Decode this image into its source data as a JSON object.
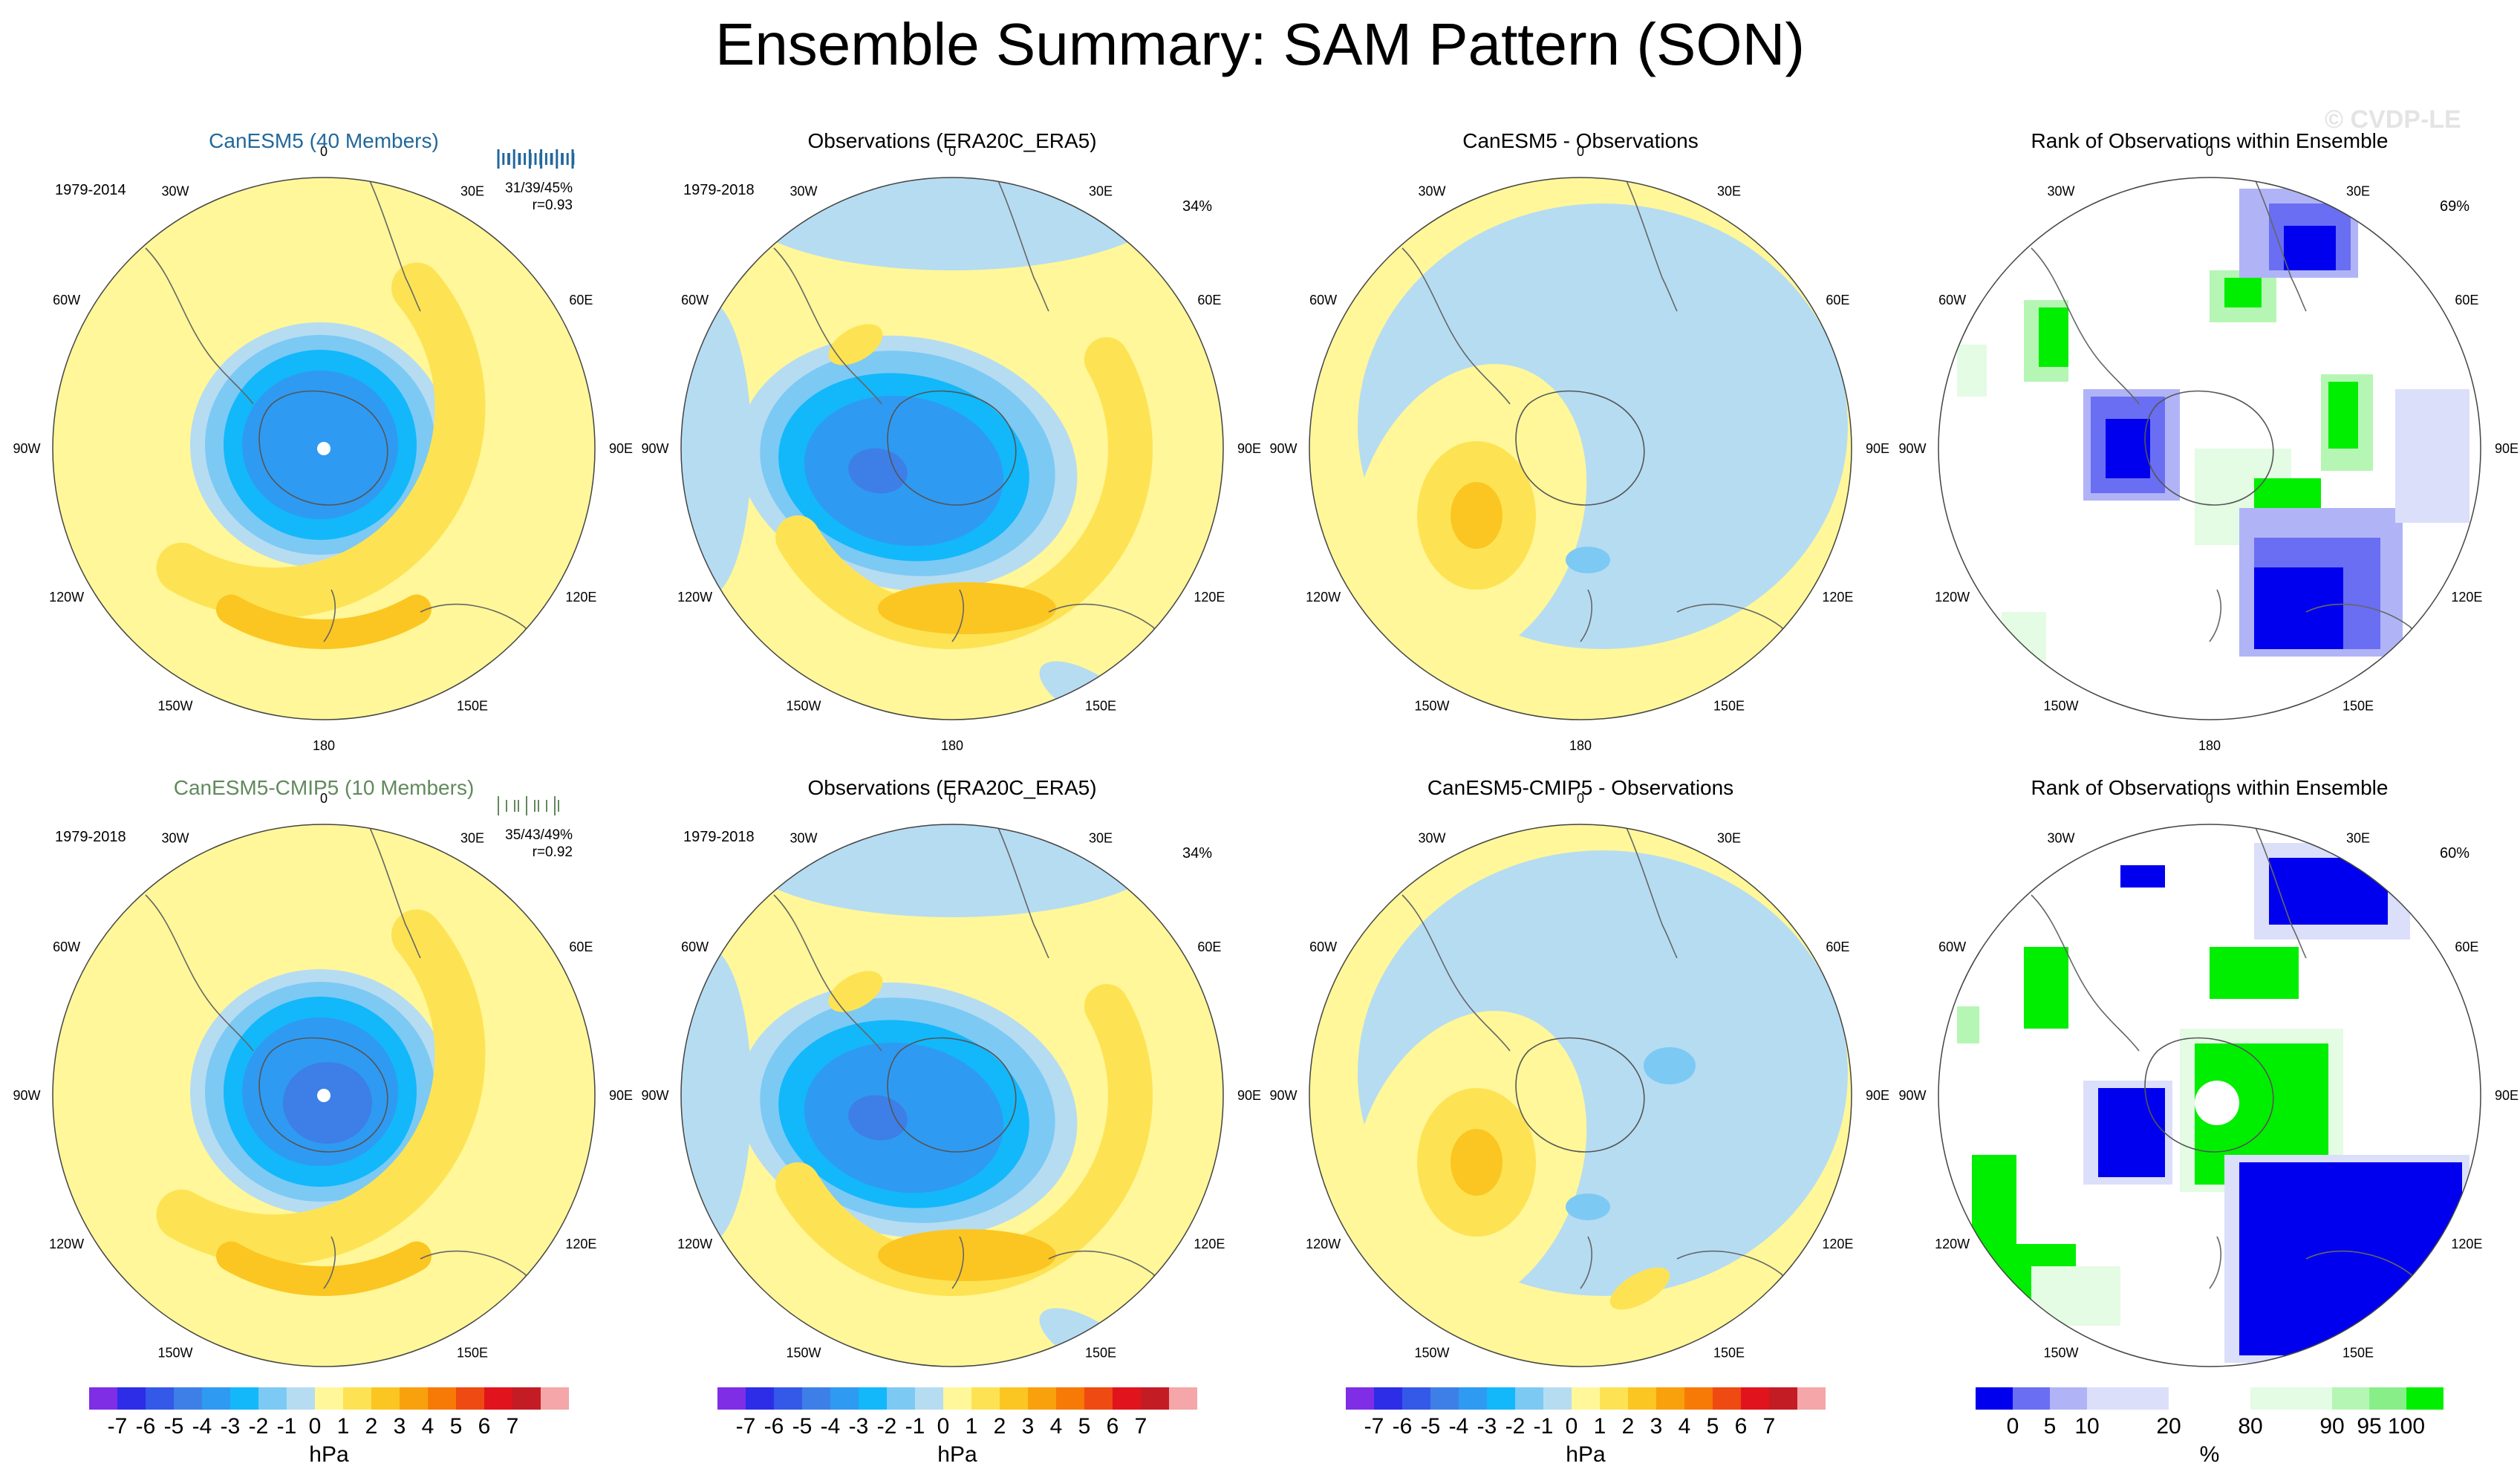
{
  "title": "Ensemble Summary: SAM Pattern (SON)",
  "watermark": "© CVDP-LE",
  "colors": {
    "diverging": [
      "#7f2ee6",
      "#2d2de8",
      "#3459e8",
      "#3d7fe6",
      "#2f9af2",
      "#12b8fa",
      "#7cc9f4",
      "#b6dcf2",
      "#fff799",
      "#fde354",
      "#fbc622",
      "#f9a00d",
      "#f77a06",
      "#ee4a12",
      "#e1141e",
      "#c41c24",
      "#f4a6a8"
    ],
    "rank": [
      "#0000ef",
      "#6a6ef2",
      "#b0b4f6",
      "#dcdffa",
      "#ffffff",
      "#e4fbe4",
      "#b6f6b4",
      "#88ef88",
      "#00ee00"
    ],
    "model_title_row1": "#22689c",
    "model_title_row2": "#618a5c"
  },
  "rows": [
    {
      "model": {
        "title": "CanESM5 (40 Members)",
        "period": "1979-2014",
        "stats": "31/39/45%",
        "corr": "r=0.93"
      },
      "obs": {
        "title": "Observations (ERA20C_ERA5)",
        "period": "1979-2018",
        "percent": "34%"
      },
      "diff": {
        "title": "CanESM5 - Observations"
      },
      "rank": {
        "title": "Rank of Observations within Ensemble",
        "percent": "69%"
      }
    },
    {
      "model": {
        "title": "CanESM5-CMIP5 (10 Members)",
        "period": "1979-2018",
        "stats": "35/43/49%",
        "corr": "r=0.92"
      },
      "obs": {
        "title": "Observations (ERA20C_ERA5)",
        "period": "1979-2018",
        "percent": "34%"
      },
      "diff": {
        "title": "CanESM5-CMIP5 - Observations"
      },
      "rank": {
        "title": "Rank of Observations within Ensemble",
        "percent": "60%"
      }
    }
  ],
  "lon_labels": [
    "0",
    "30E",
    "60E",
    "90E",
    "120E",
    "150E",
    "180",
    "150W",
    "120W",
    "90W",
    "60W",
    "30W"
  ],
  "colorbar": {
    "labels": [
      "-7",
      "-6",
      "-5",
      "-4",
      "-3",
      "-2",
      "-1",
      "0",
      "1",
      "2",
      "3",
      "4",
      "5",
      "6",
      "7"
    ],
    "unit": "hPa"
  },
  "rank_colorbar": {
    "labels": [
      "0",
      "5",
      "10",
      "20",
      "80",
      "90",
      "95",
      "100"
    ],
    "unit": "%"
  }
}
